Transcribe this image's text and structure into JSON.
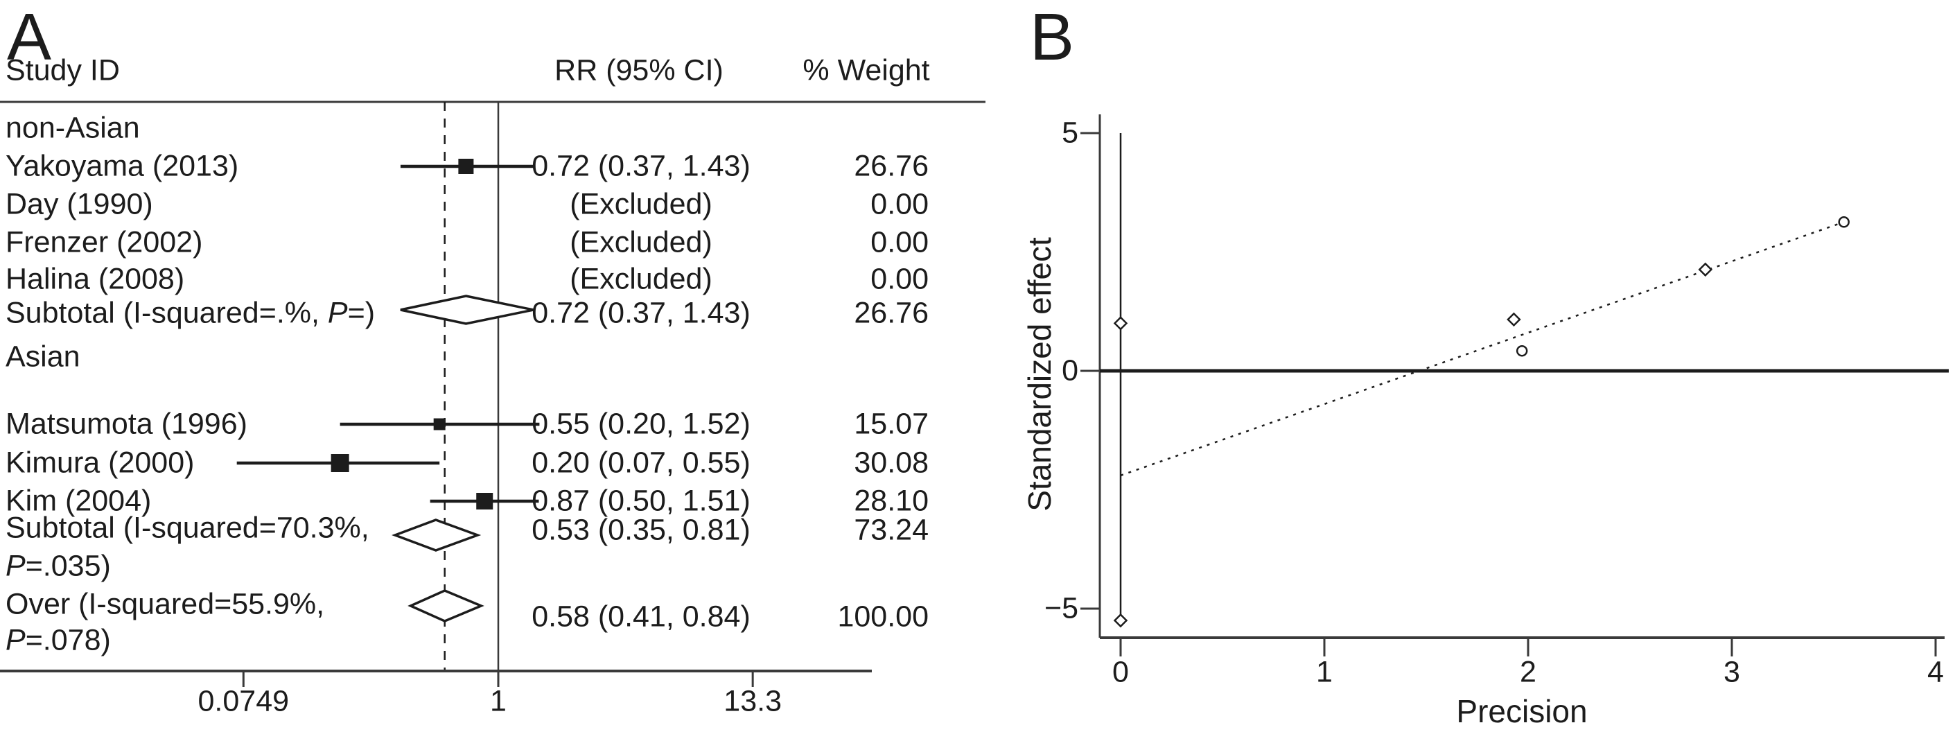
{
  "chart_data": [
    {
      "type": "forest",
      "panel_label": "A",
      "columns": {
        "study": "Study ID",
        "rr": "RR (95% CI)",
        "weight": "% Weight"
      },
      "x_axis": {
        "scale": "log",
        "tick_labels": [
          "0.0749",
          "1",
          "13.3"
        ],
        "tick_values": [
          0.0749,
          1,
          13.3
        ],
        "null_line_value": 1,
        "overall_line_value": 0.58
      },
      "rows": [
        {
          "kind": "group",
          "label": "non-Asian"
        },
        {
          "kind": "study",
          "label": "Yakoyama (2013)",
          "rr": 0.72,
          "ci_low": 0.37,
          "ci_high": 1.43,
          "rr_text": "0.72 (0.37, 1.43)",
          "weight_text": "26.76"
        },
        {
          "kind": "excluded",
          "label": "Day (1990)",
          "rr_text": "(Excluded)",
          "weight_text": "0.00"
        },
        {
          "kind": "excluded",
          "label": "Frenzer (2002)",
          "rr_text": "(Excluded)",
          "weight_text": "0.00"
        },
        {
          "kind": "excluded",
          "label": "Halina (2008)",
          "rr_text": "(Excluded)",
          "weight_text": "0.00"
        },
        {
          "kind": "subtotal",
          "label_pre": "Subtotal (I-squared=.%, ",
          "label_italic": "P",
          "label_post": "=)",
          "two_line": false,
          "rr": 0.72,
          "ci_low": 0.37,
          "ci_high": 1.43,
          "rr_text": "0.72 (0.37, 1.43)",
          "weight_text": "26.76"
        },
        {
          "kind": "group",
          "label": "Asian"
        },
        {
          "kind": "study",
          "label": "Matsumota (1996)",
          "rr": 0.55,
          "ci_low": 0.2,
          "ci_high": 1.52,
          "rr_text": "0.55 (0.20, 1.52)",
          "weight_text": "15.07"
        },
        {
          "kind": "study",
          "label": "Kimura (2000)",
          "rr": 0.2,
          "ci_low": 0.07,
          "ci_high": 0.55,
          "rr_text": "0.20 (0.07, 0.55)",
          "weight_text": "30.08"
        },
        {
          "kind": "study",
          "label": "Kim (2004)",
          "rr": 0.87,
          "ci_low": 0.5,
          "ci_high": 1.51,
          "rr_text": "0.87 (0.50, 1.51)",
          "weight_text": "28.10"
        },
        {
          "kind": "subtotal",
          "label_pre": "Subtotal (I-squared=70.3%,",
          "label_italic": "P",
          "label_post": "=.035)",
          "two_line": true,
          "rr": 0.53,
          "ci_low": 0.35,
          "ci_high": 0.81,
          "rr_text": "0.53 (0.35, 0.81)",
          "weight_text": "73.24"
        },
        {
          "kind": "overall",
          "label_pre": "Over (I-squared=55.9%,",
          "label_italic": "P",
          "label_post": "=.078)",
          "two_line": true,
          "rr": 0.58,
          "ci_low": 0.41,
          "ci_high": 0.84,
          "rr_text": "0.58 (0.41, 0.84)",
          "weight_text": "100.00"
        }
      ]
    },
    {
      "type": "scatter",
      "panel_label": "B",
      "xlabel": "Precision",
      "ylabel": "Standardized effect",
      "x_tick_labels": [
        "0",
        "1",
        "2",
        "3",
        "4"
      ],
      "x_tick_values": [
        0,
        1,
        2,
        3,
        4
      ],
      "y_tick_labels": [
        "5",
        "0",
        "−5"
      ],
      "y_tick_values": [
        5,
        0,
        -5
      ],
      "xlim": [
        0,
        4
      ],
      "ylim": [
        -5.6,
        5
      ],
      "points": [
        {
          "x": 0,
          "y": 1,
          "shape": "diamond"
        },
        {
          "x": 0,
          "y": -5.25,
          "shape": "diamond"
        },
        {
          "x": 1.93,
          "y": 1.08,
          "shape": "diamond"
        },
        {
          "x": 1.97,
          "y": 0.42,
          "shape": "circle"
        },
        {
          "x": 2.87,
          "y": 2.13,
          "shape": "diamond"
        },
        {
          "x": 3.55,
          "y": 3.13,
          "shape": "circle"
        }
      ],
      "zero_line_y": 0,
      "vertical_line": {
        "x": 0,
        "y_from": -5.25,
        "y_to": 5
      },
      "regression_line": {
        "x_from": 0,
        "y_from": -2.2,
        "x_to": 3.55,
        "y_to": 3.13,
        "style": "dotted"
      }
    }
  ],
  "colors": {
    "ink": "#1c1c1c",
    "axis": "#3a3a3a",
    "background": "#ffffff"
  }
}
